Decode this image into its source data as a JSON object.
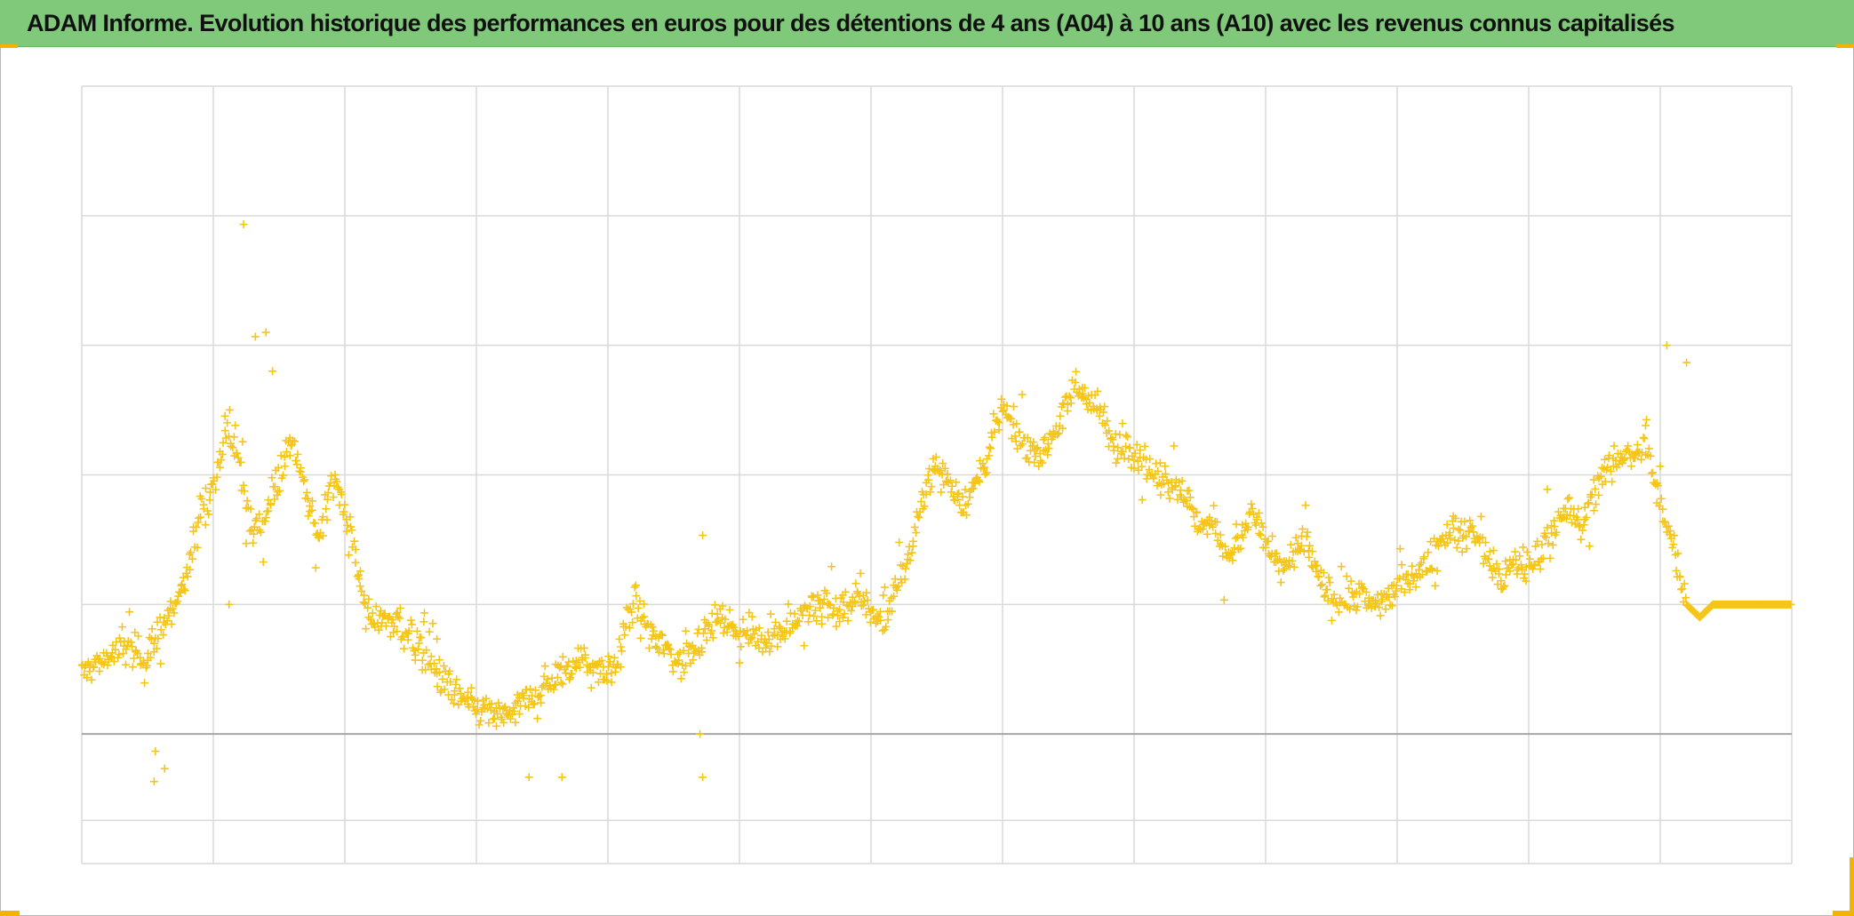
{
  "title": "ADAM Informe. Evolution historique des performances en euros pour des détentions de 4 ans (A04) à 10 ans (A10) avec les revenus connus capitalisés",
  "colors": {
    "title_background": "#80c97a",
    "marker": "#f5c518",
    "grid": "#d9d9d9",
    "zero_line": "#a6a6a6",
    "corner_accent": "#f2b400"
  },
  "chart_data": {
    "type": "scatter",
    "title": "ADAM Informe. Evolution historique des performances en euros pour des détentions de 4 ans (A04) à 10 ans (A10) avec les revenus connus capitalisés",
    "xlabel": "",
    "ylabel": "",
    "marker": "+",
    "grid": true,
    "tick_labels_visible": false,
    "xlim": [
      0,
      13
    ],
    "ylim": [
      -4,
      14
    ],
    "x_gridlines": [
      0,
      1,
      2,
      3,
      4,
      5,
      6,
      7,
      8,
      9,
      10,
      11,
      12,
      13
    ],
    "y_gridlines": [
      -4,
      -3,
      -1,
      2,
      5,
      8,
      11,
      14
    ],
    "zero_line": -1,
    "series": [
      {
        "color": "#f5c518",
        "trend": [
          [
            0.0,
            0.4
          ],
          [
            0.2,
            0.8
          ],
          [
            0.35,
            1.0
          ],
          [
            0.5,
            0.8
          ],
          [
            0.6,
            1.4
          ],
          [
            0.7,
            2.0
          ],
          [
            0.8,
            2.6
          ],
          [
            0.9,
            4.3
          ],
          [
            1.0,
            4.8
          ],
          [
            1.1,
            6.0
          ],
          [
            1.2,
            5.2
          ],
          [
            1.3,
            3.6
          ],
          [
            1.4,
            4.2
          ],
          [
            1.5,
            5.0
          ],
          [
            1.6,
            5.8
          ],
          [
            1.7,
            4.6
          ],
          [
            1.8,
            3.5
          ],
          [
            1.9,
            5.0
          ],
          [
            2.0,
            4.2
          ],
          [
            2.1,
            2.8
          ],
          [
            2.2,
            1.6
          ],
          [
            2.3,
            1.7
          ],
          [
            2.4,
            1.6
          ],
          [
            2.5,
            1.2
          ],
          [
            2.6,
            0.8
          ],
          [
            2.7,
            0.4
          ],
          [
            2.8,
            0.0
          ],
          [
            3.0,
            -0.4
          ],
          [
            3.2,
            -0.6
          ],
          [
            3.4,
            -0.2
          ],
          [
            3.6,
            0.3
          ],
          [
            3.8,
            0.8
          ],
          [
            4.0,
            0.2
          ],
          [
            4.1,
            1.0
          ],
          [
            4.2,
            2.2
          ],
          [
            4.3,
            1.4
          ],
          [
            4.45,
            1.0
          ],
          [
            4.55,
            0.6
          ],
          [
            4.7,
            1.3
          ],
          [
            4.85,
            1.7
          ],
          [
            5.0,
            1.4
          ],
          [
            5.2,
            1.2
          ],
          [
            5.4,
            1.6
          ],
          [
            5.5,
            1.8
          ],
          [
            5.6,
            2.0
          ],
          [
            5.75,
            1.8
          ],
          [
            5.9,
            2.2
          ],
          [
            6.0,
            1.8
          ],
          [
            6.1,
            1.6
          ],
          [
            6.2,
            2.4
          ],
          [
            6.3,
            3.2
          ],
          [
            6.4,
            4.7
          ],
          [
            6.5,
            5.2
          ],
          [
            6.6,
            4.8
          ],
          [
            6.7,
            4.3
          ],
          [
            6.8,
            4.8
          ],
          [
            6.9,
            5.6
          ],
          [
            7.0,
            6.6
          ],
          [
            7.1,
            6.0
          ],
          [
            7.2,
            5.7
          ],
          [
            7.3,
            5.5
          ],
          [
            7.4,
            6.1
          ],
          [
            7.5,
            6.6
          ],
          [
            7.55,
            7.1
          ],
          [
            7.65,
            6.8
          ],
          [
            7.75,
            6.4
          ],
          [
            7.85,
            5.6
          ],
          [
            7.95,
            5.7
          ],
          [
            8.05,
            5.4
          ],
          [
            8.15,
            5.0
          ],
          [
            8.25,
            5.0
          ],
          [
            8.4,
            4.5
          ],
          [
            8.5,
            3.8
          ],
          [
            8.6,
            3.9
          ],
          [
            8.7,
            3.2
          ],
          [
            8.8,
            3.4
          ],
          [
            8.9,
            4.2
          ],
          [
            9.0,
            3.4
          ],
          [
            9.1,
            2.8
          ],
          [
            9.2,
            3.0
          ],
          [
            9.3,
            3.6
          ],
          [
            9.4,
            2.6
          ],
          [
            9.5,
            2.2
          ],
          [
            9.6,
            2.1
          ],
          [
            9.7,
            2.3
          ],
          [
            9.8,
            2.0
          ],
          [
            9.9,
            2.1
          ],
          [
            10.0,
            2.4
          ],
          [
            10.1,
            2.7
          ],
          [
            10.2,
            2.8
          ],
          [
            10.3,
            3.4
          ],
          [
            10.4,
            3.8
          ],
          [
            10.5,
            3.6
          ],
          [
            10.6,
            3.7
          ],
          [
            10.7,
            3.0
          ],
          [
            10.8,
            2.6
          ],
          [
            10.9,
            3.0
          ],
          [
            11.0,
            2.8
          ],
          [
            11.1,
            3.4
          ],
          [
            11.2,
            3.8
          ],
          [
            11.3,
            4.2
          ],
          [
            11.4,
            3.8
          ],
          [
            11.5,
            4.6
          ],
          [
            11.6,
            5.2
          ],
          [
            11.7,
            5.5
          ],
          [
            11.8,
            5.4
          ],
          [
            11.9,
            5.7
          ],
          [
            11.95,
            4.8
          ],
          [
            12.0,
            4.4
          ],
          [
            12.1,
            3.4
          ],
          [
            12.2,
            2.0
          ],
          [
            12.3,
            1.7
          ],
          [
            12.4,
            2.0
          ],
          [
            12.6,
            2.0
          ],
          [
            12.8,
            2.0
          ],
          [
            13.0,
            2.0
          ]
        ],
        "outliers": [
          [
            1.23,
            10.8
          ],
          [
            1.4,
            8.3
          ],
          [
            1.32,
            8.2
          ],
          [
            1.45,
            7.4
          ],
          [
            0.55,
            -2.1
          ],
          [
            0.63,
            -1.8
          ],
          [
            0.56,
            -1.4
          ],
          [
            2.6,
            1.6
          ],
          [
            2.7,
            1.2
          ],
          [
            4.72,
            3.6
          ],
          [
            4.7,
            -1.0
          ],
          [
            4.72,
            -2.0
          ],
          [
            12.05,
            8.0
          ],
          [
            12.2,
            7.6
          ],
          [
            3.4,
            -2.0
          ],
          [
            3.65,
            -2.0
          ],
          [
            1.12,
            2.0
          ]
        ]
      }
    ]
  }
}
